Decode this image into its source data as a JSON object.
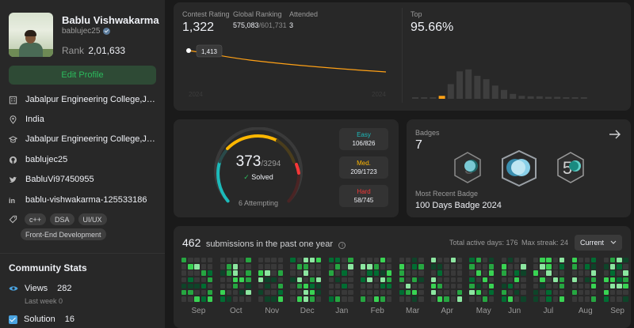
{
  "profile": {
    "name": "Bablu Vishwakarma",
    "username": "bablujec25",
    "rank_label": "Rank",
    "rank_value": "2,01,633",
    "edit_button": "Edit Profile",
    "info": [
      {
        "icon": "building-icon",
        "text": "Jabalpur Engineering College,Jabalpu..."
      },
      {
        "icon": "location-icon",
        "text": "India"
      },
      {
        "icon": "school-icon",
        "text": "Jabalpur Engineering College,Jabalpur"
      },
      {
        "icon": "github-icon",
        "text": "bablujec25"
      },
      {
        "icon": "twitter-icon",
        "text": "BabluVi97450955"
      },
      {
        "icon": "linkedin-icon",
        "text": "bablu-vishwakarma-125533186"
      }
    ],
    "tags": [
      "c++",
      "DSA",
      "UI/UX",
      "Front-End Development"
    ]
  },
  "community": {
    "title": "Community Stats",
    "views_label": "Views",
    "views_value": "282",
    "views_note": "Last week 0",
    "solution_label": "Solution",
    "solution_value": "16"
  },
  "contest": {
    "rating_label": "Contest Rating",
    "rating_value": "1,322",
    "ranking_label": "Global Ranking",
    "ranking_value": "575,083",
    "ranking_total": "/601,731",
    "attended_label": "Attended",
    "attended_value": "3",
    "tooltip": "1,413",
    "axis_start": "2024",
    "axis_end": "2024",
    "top_label": "Top",
    "top_value": "95.66%",
    "histogram": [
      0.03,
      0.03,
      0.03,
      0.06,
      0.3,
      0.56,
      0.6,
      0.47,
      0.4,
      0.27,
      0.18,
      0.1,
      0.06,
      0.05,
      0.05,
      0.04,
      0.04,
      0.03,
      0.03,
      0.03
    ],
    "highlight_bar": 3
  },
  "solved": {
    "count": "373",
    "total": "/3294",
    "label": "Solved",
    "attempting": "6 Attempting",
    "easy_label": "Easy",
    "easy_value": "106/826",
    "easy_color": "#1cbaba",
    "medium_label": "Med.",
    "medium_value": "209/1723",
    "medium_color": "#ffb700",
    "hard_label": "Hard",
    "hard_value": "58/745",
    "hard_color": "#f63737"
  },
  "badges": {
    "label": "Badges",
    "count": "7",
    "recent_label": "Most Recent Badge",
    "recent_name": "100 Days Badge 2024"
  },
  "submissions": {
    "count": "462",
    "text": "submissions in the past one year",
    "active_days": "Total active days: 176",
    "max_streak": "Max streak: 24",
    "period": "Current",
    "months": [
      "Sep",
      "Oct",
      "Nov",
      "Dec",
      "Jan",
      "Feb",
      "Mar",
      "Apr",
      "May",
      "Jun",
      "Jul",
      "Aug",
      "Sep"
    ]
  },
  "colors": {
    "accent_green": "#2cbb5d",
    "easy": "#1cbaba",
    "medium": "#ffb700",
    "hard": "#f63737",
    "contest_line": "#ffa116"
  }
}
